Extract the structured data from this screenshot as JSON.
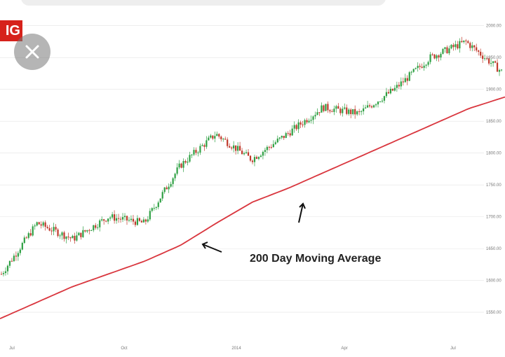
{
  "header": {
    "logo_text": "IG"
  },
  "colors": {
    "up": "#2ea043",
    "down": "#c0392b",
    "ma": "#d9363e",
    "grid": "#e3e3e3",
    "brand": "#d6221b"
  },
  "close_button": {
    "icon": "close-icon"
  },
  "chart_data": {
    "type": "candlestick",
    "title": "",
    "xlabel": "",
    "ylabel": "",
    "x_ticks": [
      "Jul",
      "Oct",
      "2014",
      "Apr",
      "Jul"
    ],
    "y_ticks": [
      "1550.00",
      "1600.00",
      "1650.00",
      "1700.00",
      "1750.00",
      "1800.00",
      "1850.00",
      "1900.00",
      "1950.00",
      "2000.00"
    ],
    "ylim": [
      1538,
      2003
    ],
    "grid": true,
    "annotation": "200 Day Moving Average",
    "series": [
      {
        "kind": "price",
        "months": [
          "Jun 2013",
          "Jul 2013",
          "Aug 2013",
          "Sep 2013",
          "Oct 2013",
          "Nov 2013",
          "Dec 2013",
          "Jan 2014",
          "Feb 2014",
          "Mar 2014",
          "Apr 2014",
          "May 2014",
          "Jun 2014",
          "Jul 2014",
          "Aug 2014"
        ],
        "close": [
          1610,
          1690,
          1665,
          1700,
          1690,
          1780,
          1830,
          1790,
          1830,
          1872,
          1862,
          1900,
          1950,
          1975,
          1928
        ]
      },
      {
        "kind": "moving-average",
        "period_days": 200,
        "months": [
          "Jun 2013",
          "Jul 2013",
          "Aug 2013",
          "Sep 2013",
          "Oct 2013",
          "Nov 2013",
          "Dec 2013",
          "Jan 2014",
          "Feb 2014",
          "Mar 2014",
          "Apr 2014",
          "May 2014",
          "Jun 2014",
          "Jul 2014",
          "Aug 2014"
        ],
        "values": [
          1540,
          1565,
          1590,
          1610,
          1630,
          1655,
          1690,
          1723,
          1745,
          1770,
          1795,
          1820,
          1845,
          1870,
          1888
        ]
      }
    ]
  }
}
